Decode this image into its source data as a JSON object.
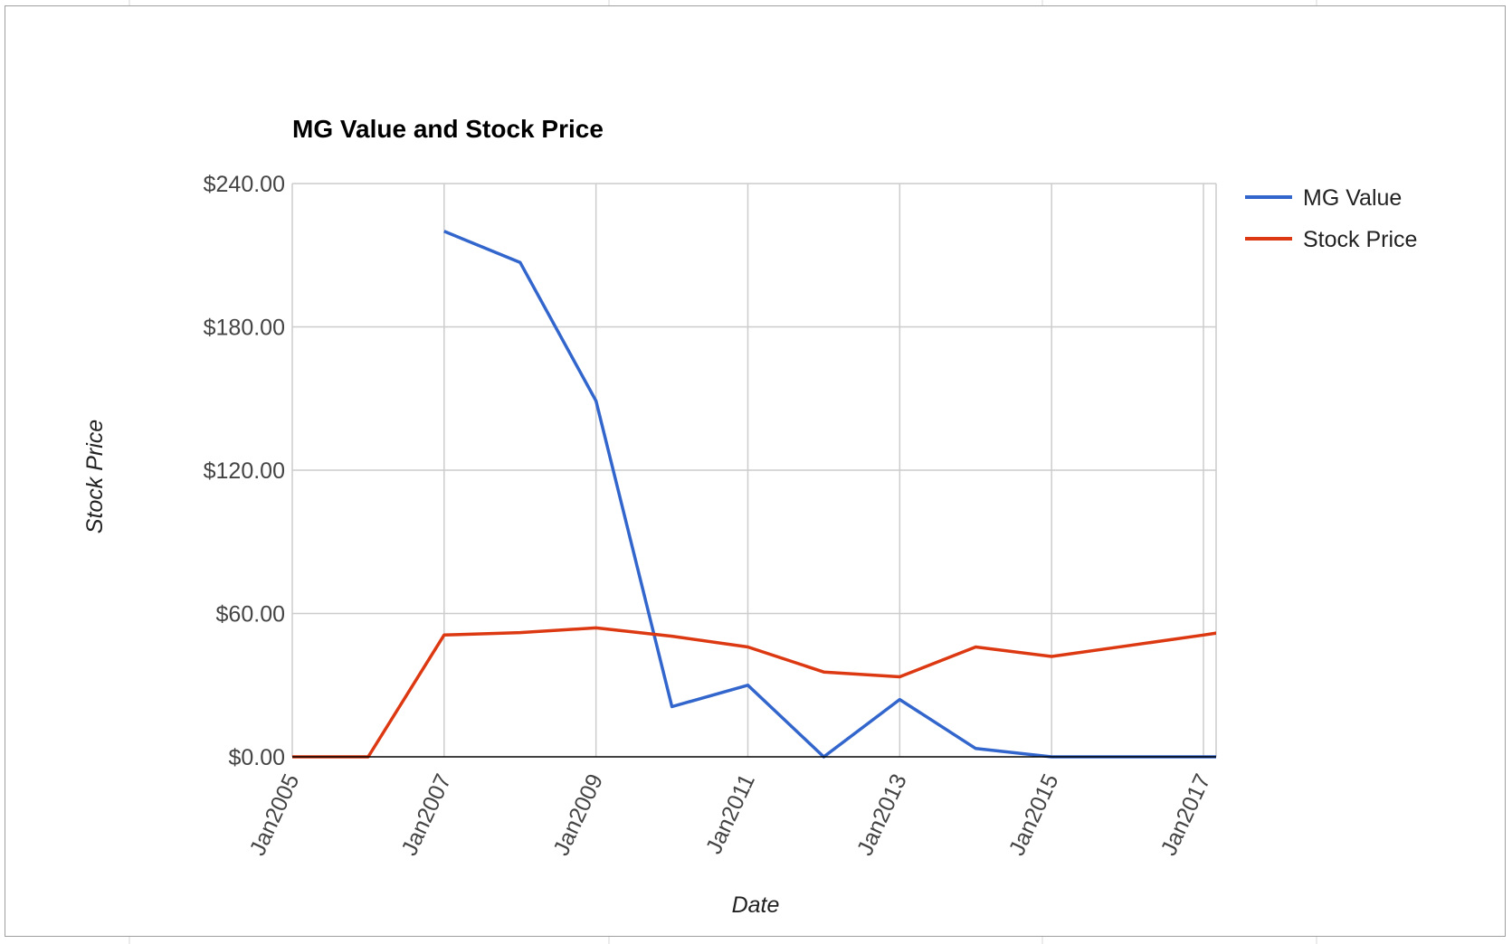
{
  "colors": {
    "mg_value": "#3366cc",
    "stock_price": "#dc3912",
    "gridline": "#cccccc",
    "baseline": "#000000"
  },
  "chart_data": {
    "type": "line",
    "title": "MG Value and Stock Price",
    "xlabel": "Date",
    "ylabel": "Stock Price",
    "x": [
      "2005-01",
      "2006-01",
      "2007-01",
      "2008-01",
      "2009-01",
      "2010-01",
      "2011-01",
      "2012-01",
      "2013-01",
      "2014-01",
      "2015-01",
      "2016-01",
      "2017-01",
      "2017-06"
    ],
    "xlim": [
      "2005-01",
      "2017-03"
    ],
    "x_ticks": [
      "Jan2005",
      "Jan2007",
      "Jan2009",
      "Jan2011",
      "Jan2013",
      "Jan2015",
      "Jan2017"
    ],
    "ylim": [
      0,
      240
    ],
    "y_ticks": [
      "$0.00",
      "$60.00",
      "$120.00",
      "$180.00",
      "$240.00"
    ],
    "grid": true,
    "legend_position": "right",
    "series": [
      {
        "name": "MG Value",
        "color": "#3366cc",
        "values": [
          null,
          null,
          220,
          207,
          149,
          21,
          30,
          0,
          24,
          3.5,
          0,
          0,
          0,
          0
        ]
      },
      {
        "name": "Stock Price",
        "color": "#dc3912",
        "values": [
          0,
          0,
          51,
          52,
          54,
          50.5,
          46,
          35.5,
          33.5,
          46,
          42,
          46.5,
          51,
          53
        ]
      }
    ]
  }
}
